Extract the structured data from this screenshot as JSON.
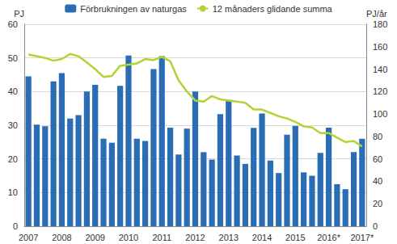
{
  "chart_data": {
    "type": "bar",
    "y_label": "PJ",
    "y2_label": "PJ/år",
    "categories": [
      "2007",
      null,
      null,
      null,
      "2008",
      null,
      null,
      null,
      "2009",
      null,
      null,
      null,
      "2010",
      null,
      null,
      null,
      "2011",
      null,
      null,
      null,
      "2012",
      null,
      null,
      null,
      "2013",
      null,
      null,
      null,
      "2014",
      null,
      null,
      null,
      "2015",
      null,
      null,
      null,
      "2016*",
      null,
      null,
      null,
      "2017*"
    ],
    "series": [
      {
        "name": "Förbrukningen av naturgas",
        "type": "bar",
        "color": "#2a6db5",
        "values": [
          44.5,
          30.2,
          29.7,
          43,
          45.5,
          32,
          33,
          40,
          42,
          26,
          24.8,
          41.7,
          50.7,
          26,
          25.3,
          46.7,
          50.5,
          29.3,
          21.3,
          29,
          40,
          22,
          19.8,
          33.3,
          37.5,
          21,
          18.5,
          29.2,
          33.5,
          19.5,
          15.8,
          27.2,
          29.8,
          16,
          15,
          21.8,
          29.3,
          12.5,
          11,
          22,
          26
        ]
      },
      {
        "name": "12 månaders glidande summa",
        "type": "line",
        "axis": "y2",
        "color": "#b3d335",
        "values": [
          153,
          151.5,
          150,
          147.5,
          149,
          153.5,
          151.5,
          146,
          140,
          133,
          134,
          143,
          144,
          145,
          149,
          148,
          151,
          147,
          130,
          120,
          112,
          111,
          116,
          113,
          112,
          111,
          110,
          104,
          104,
          101,
          98,
          96,
          93,
          89,
          88,
          83,
          83,
          79,
          75,
          76,
          71
        ]
      }
    ],
    "ylim": [
      0,
      60
    ],
    "yticks": [
      0,
      10,
      20,
      30,
      40,
      50,
      60
    ],
    "y2lim": [
      0,
      180
    ],
    "y2ticks": [
      0,
      20,
      40,
      60,
      80,
      100,
      120,
      140,
      160,
      180
    ],
    "grid": true,
    "legend": "top"
  }
}
